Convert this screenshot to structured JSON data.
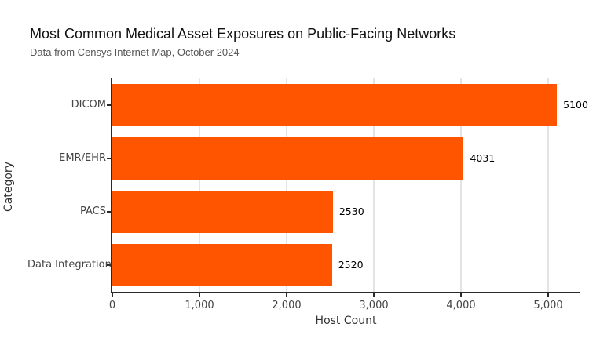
{
  "chart_data": {
    "type": "bar",
    "orientation": "horizontal",
    "title": "Most Common Medical Asset Exposures on Public-Facing Networks",
    "subtitle": "Data from Censys Internet Map, October 2024",
    "xlabel": "Host Count",
    "ylabel": "Category",
    "categories": [
      "DICOM",
      "EMR/EHR",
      "PACS",
      "Data Integration"
    ],
    "values": [
      5100,
      4031,
      2530,
      2520
    ],
    "value_labels": [
      "5100",
      "4031",
      "2530",
      "2520"
    ],
    "xlim": [
      0,
      5360
    ],
    "xticks": [
      0,
      1000,
      2000,
      3000,
      4000,
      5000
    ],
    "xtick_labels": [
      "0",
      "1,000",
      "2,000",
      "3,000",
      "4,000",
      "5,000"
    ],
    "grid": true,
    "legend": "none",
    "colors": {
      "bar": "#FF5500",
      "gridline": "#E4E4E4",
      "axis_line": "#2A2A2A",
      "tick_label": "#444444",
      "title": "#111111",
      "subtitle": "#555555",
      "background": "#FFFFFF"
    }
  }
}
